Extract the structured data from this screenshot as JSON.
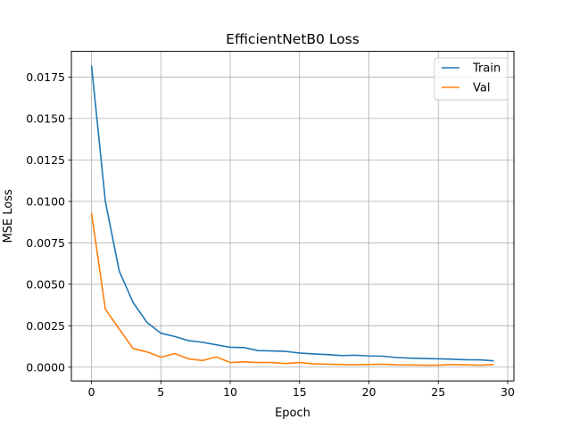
{
  "chart_data": {
    "type": "line",
    "title": "EfficientNetB0 Loss",
    "xlabel": "Epoch",
    "ylabel": "MSE Loss",
    "xlim": [
      -1.45,
      30.45
    ],
    "ylim": [
      -0.00083,
      0.01905
    ],
    "xticks": [
      0,
      5,
      10,
      15,
      20,
      25,
      30
    ],
    "yticks": [
      0.0,
      0.0025,
      0.005,
      0.0075,
      0.01,
      0.0125,
      0.015,
      0.0175
    ],
    "ytick_labels": [
      "0.0000",
      "0.0025",
      "0.0050",
      "0.0075",
      "0.0100",
      "0.0125",
      "0.0150",
      "0.0175"
    ],
    "grid": true,
    "legend_position": "top-right",
    "x": [
      0,
      1,
      2,
      3,
      4,
      5,
      6,
      7,
      8,
      9,
      10,
      11,
      12,
      13,
      14,
      15,
      16,
      17,
      18,
      19,
      20,
      21,
      22,
      23,
      24,
      25,
      26,
      27,
      28,
      29
    ],
    "series": [
      {
        "name": "Train",
        "color": "#1f77b4",
        "values": [
          0.0182,
          0.01,
          0.0058,
          0.0039,
          0.0027,
          0.00205,
          0.00185,
          0.0016,
          0.0015,
          0.00135,
          0.0012,
          0.00118,
          0.001,
          0.00098,
          0.00095,
          0.00085,
          0.0008,
          0.00076,
          0.0007,
          0.00072,
          0.00068,
          0.00066,
          0.00058,
          0.00054,
          0.00052,
          0.0005,
          0.00048,
          0.00045,
          0.00044,
          0.00038
        ]
      },
      {
        "name": "Val",
        "color": "#ff7f0e",
        "values": [
          0.0093,
          0.0035,
          0.0023,
          0.00112,
          0.00092,
          0.0006,
          0.00082,
          0.0005,
          0.0004,
          0.00062,
          0.00028,
          0.00032,
          0.00028,
          0.00028,
          0.00022,
          0.00028,
          0.0002,
          0.00018,
          0.00016,
          0.00015,
          0.00016,
          0.00018,
          0.00014,
          0.00013,
          0.00012,
          0.00012,
          0.00016,
          0.00014,
          0.00012,
          0.00015
        ]
      }
    ]
  }
}
